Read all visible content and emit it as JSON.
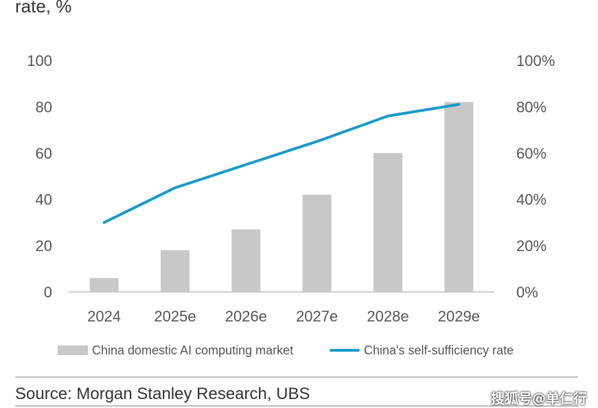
{
  "header": {
    "partial_title": "rate, %"
  },
  "chart_data": {
    "type": "bar",
    "categories": [
      "2024",
      "2025e",
      "2026e",
      "2027e",
      "2028e",
      "2029e"
    ],
    "series": [
      {
        "name": "China domestic AI computing market",
        "type": "bar",
        "axis": "left",
        "color": "#c8c8c8",
        "values": [
          6,
          18,
          27,
          42,
          60,
          82
        ]
      },
      {
        "name": "China's self-sufficiency rate",
        "type": "line",
        "axis": "right",
        "color": "#1a9ac9",
        "values": [
          30,
          45,
          55,
          65,
          76,
          81
        ]
      }
    ],
    "left_axis": {
      "ylim": [
        0,
        100
      ],
      "ticks": [
        "0",
        "20",
        "40",
        "60",
        "80",
        "100"
      ]
    },
    "right_axis": {
      "ylim": [
        0,
        100
      ],
      "ticks": [
        "0%",
        "20%",
        "40%",
        "60%",
        "80%",
        "100%"
      ]
    },
    "legend_placement": "bottom",
    "grid": false
  },
  "legend": {
    "bar_label": "China domestic AI computing market",
    "line_label": "China's self-sufficiency rate"
  },
  "footer": {
    "source": "Source: Morgan Stanley Research, UBS",
    "watermark": "搜狐号@单仁行"
  }
}
